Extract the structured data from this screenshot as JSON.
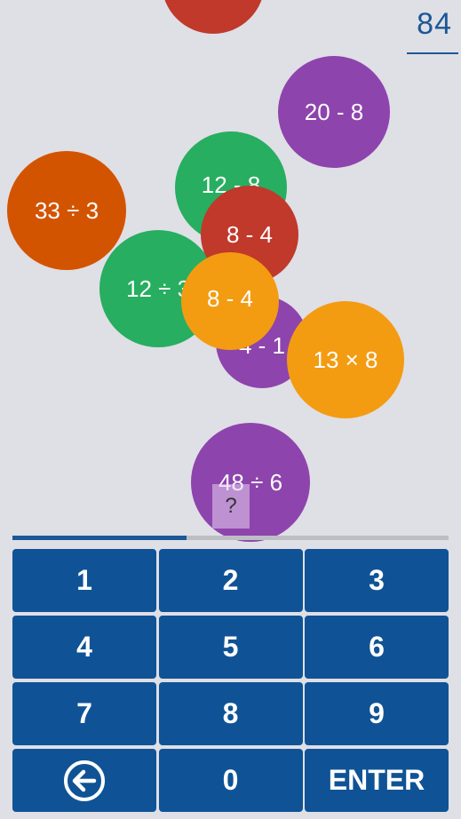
{
  "score": "84",
  "bubbles": [
    {
      "label": "",
      "color": "red"
    },
    {
      "label": "20 - 8",
      "color": "purple"
    },
    {
      "label": "12 - 8",
      "color": "green"
    },
    {
      "label": "33 ÷ 3",
      "color": "orange"
    },
    {
      "label": "12 ÷ 3",
      "color": "green"
    },
    {
      "label": "8 - 4",
      "color": "red"
    },
    {
      "label": "4 - 1",
      "color": "purple"
    },
    {
      "label": "8 - 4",
      "color": "yellow"
    },
    {
      "label": "13 × 8",
      "color": "yellow"
    },
    {
      "label": "48 ÷ 6",
      "color": "purple"
    }
  ],
  "answer": {
    "text": "?"
  },
  "progress": {
    "fraction": 0.4,
    "fill_color": "#1c5896"
  },
  "keypad": {
    "keys": [
      "1",
      "2",
      "3",
      "4",
      "5",
      "6",
      "7",
      "8",
      "9",
      "",
      "0",
      "ENTER"
    ],
    "backspace_icon": "back-arrow-circle-icon"
  },
  "colors": {
    "background": "#dfdfe6",
    "key": "#0f5396",
    "purple": "#8e44ad",
    "green": "#27ae60",
    "red": "#c0392b",
    "orange": "#d35400",
    "yellow": "#f39c12"
  }
}
